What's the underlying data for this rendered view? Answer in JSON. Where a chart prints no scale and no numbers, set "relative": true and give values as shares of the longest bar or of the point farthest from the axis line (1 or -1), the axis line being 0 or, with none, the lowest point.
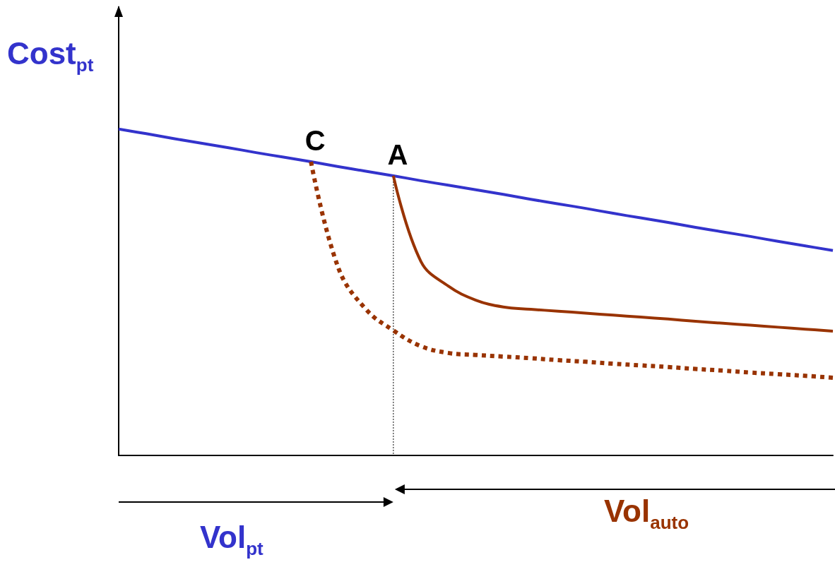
{
  "chart_data": {
    "type": "line",
    "relative": true,
    "ylabel": "Cost$_{pt}$",
    "xlabel": "Vol$_{pt}$",
    "categories": [
      null,
      null,
      null,
      null,
      null,
      null,
      null,
      null,
      null,
      null,
      null,
      null,
      null,
      null,
      null,
      null,
      null,
      null,
      null,
      null,
      null,
      null,
      null,
      null,
      null,
      null,
      null
    ],
    "marker": "none",
    "grid": false,
    "series": [
      {
        "color": "#3333cc",
        "line_style": "solid",
        "values": [
          1,
          0.986,
          0.971,
          0.957,
          0.943,
          0.928,
          0.914,
          0.9,
          0.885,
          0.871,
          0.857,
          0.842,
          0.828,
          0.814,
          0.8,
          0.785,
          0.771,
          0.757,
          0.742,
          0.728,
          0.714,
          0.699,
          0.685,
          0.671,
          0.656,
          0.642,
          0.628
        ]
      },
      {
        "color": "#993300",
        "line_style": "solid",
        "values": [
          null,
          null,
          null,
          null,
          null,
          null,
          null,
          null,
          null,
          null,
          0.857,
          0.595,
          0.519,
          0.476,
          0.455,
          0.448,
          0.442,
          0.436,
          0.43,
          0.424,
          0.418,
          0.411,
          0.405,
          0.399,
          0.393,
          0.387,
          0.381
        ]
      },
      {
        "color": "#993300",
        "line_style": "dotted",
        "values": [
          null,
          null,
          null,
          null,
          null,
          null,
          null,
          0.9,
          0.574,
          0.448,
          0.383,
          0.335,
          0.314,
          0.308,
          0.303,
          0.298,
          0.292,
          0.287,
          0.281,
          0.276,
          0.271,
          0.265,
          0.26,
          0.254,
          0.249,
          0.244,
          0.238
        ]
      }
    ],
    "annotations": [
      {
        "text": "C",
        "y": 0.9
      },
      {
        "text": "A",
        "y": 0.857
      },
      {
        "text": "Vol$_{auto}$"
      }
    ]
  }
}
